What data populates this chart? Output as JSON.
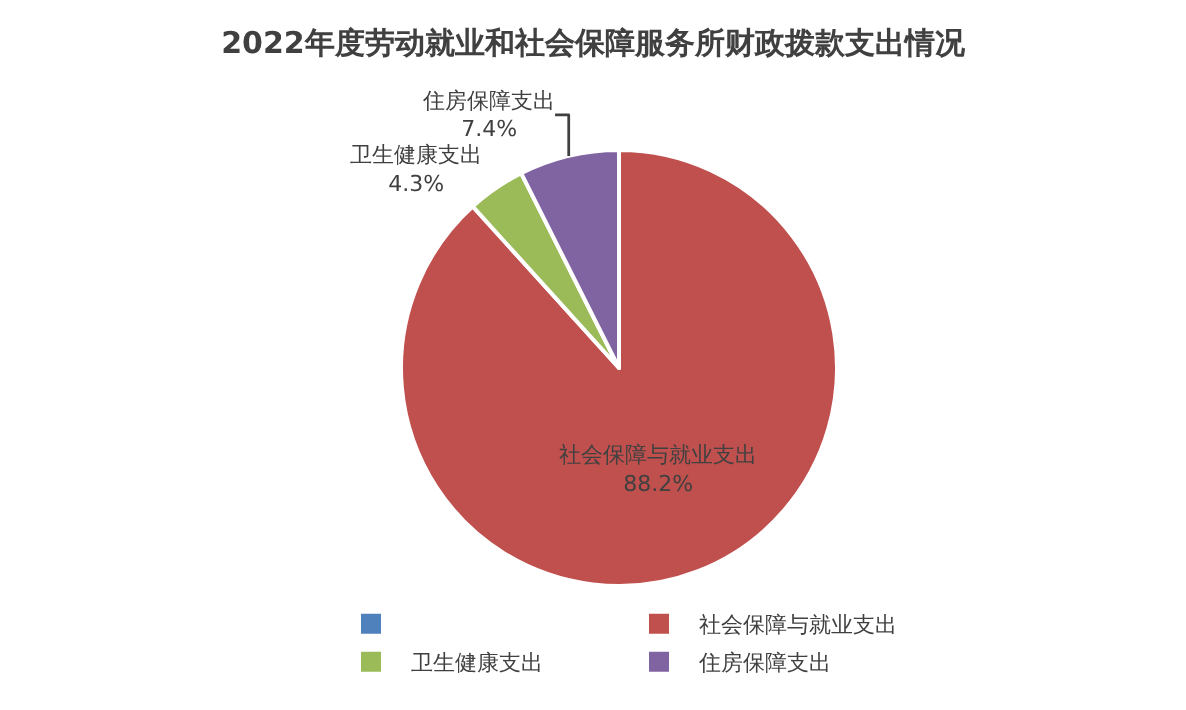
{
  "chart_data": {
    "type": "pie",
    "title": "2022年度劳动就业和社会保障服务所财政拨款支出情况",
    "categories": [
      null,
      "社会保障与就业支出",
      "卫生健康支出",
      "住房保障支出"
    ],
    "values": [
      0,
      88.2,
      4.3,
      7.4
    ],
    "colors": [
      "#4f81bd",
      "#c0504d",
      "#9bbb59",
      "#8064a2"
    ],
    "value_labels": [
      null,
      "88.2%",
      "4.3%",
      "7.4%"
    ],
    "legend": "bottom"
  }
}
